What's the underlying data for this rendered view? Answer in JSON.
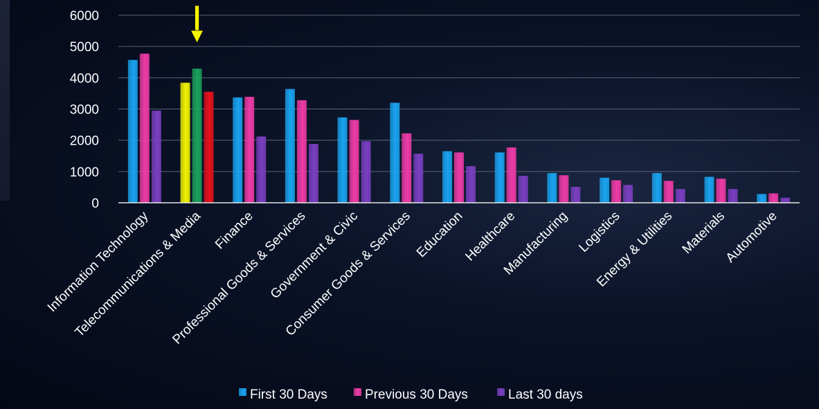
{
  "colors": {
    "first": "#19a3ef",
    "previous": "#ee3ba6",
    "last": "#7a3fc0",
    "highlight_first": "#f2f200",
    "highlight_previous": "#1aa15b",
    "highlight_last": "#e8101c",
    "arrow": "#f5f500"
  },
  "chart_data": {
    "type": "bar",
    "title": "",
    "xlabel": "",
    "ylabel": "",
    "ylim": [
      0,
      6000
    ],
    "yticks": [
      0,
      1000,
      2000,
      3000,
      4000,
      5000,
      6000
    ],
    "grid": true,
    "legend_position": "bottom",
    "highlight": {
      "category": "Telecommunications & Media",
      "marker": "arrow"
    },
    "categories": [
      "Information Technology",
      "Telecommunications & Media",
      "Finance",
      "Professional Goods & Services",
      "Government & Civic",
      "Consumer Goods &  Services",
      "Education",
      "Healthcare",
      "Manufacturing",
      "Logistics",
      "Energy & Utilities",
      "Materials",
      "Automotive"
    ],
    "series": [
      {
        "name": "First 30 Days",
        "values": [
          4570,
          3840,
          3370,
          3640,
          2730,
          3200,
          1650,
          1610,
          950,
          800,
          950,
          830,
          280
        ]
      },
      {
        "name": "Previous 30 Days",
        "values": [
          4770,
          4290,
          3390,
          3280,
          2650,
          2220,
          1610,
          1770,
          880,
          720,
          700,
          770,
          300
        ]
      },
      {
        "name": "Last 30 days",
        "values": [
          2950,
          3550,
          2120,
          1880,
          1970,
          1570,
          1170,
          860,
          510,
          570,
          440,
          440,
          160
        ]
      }
    ]
  }
}
